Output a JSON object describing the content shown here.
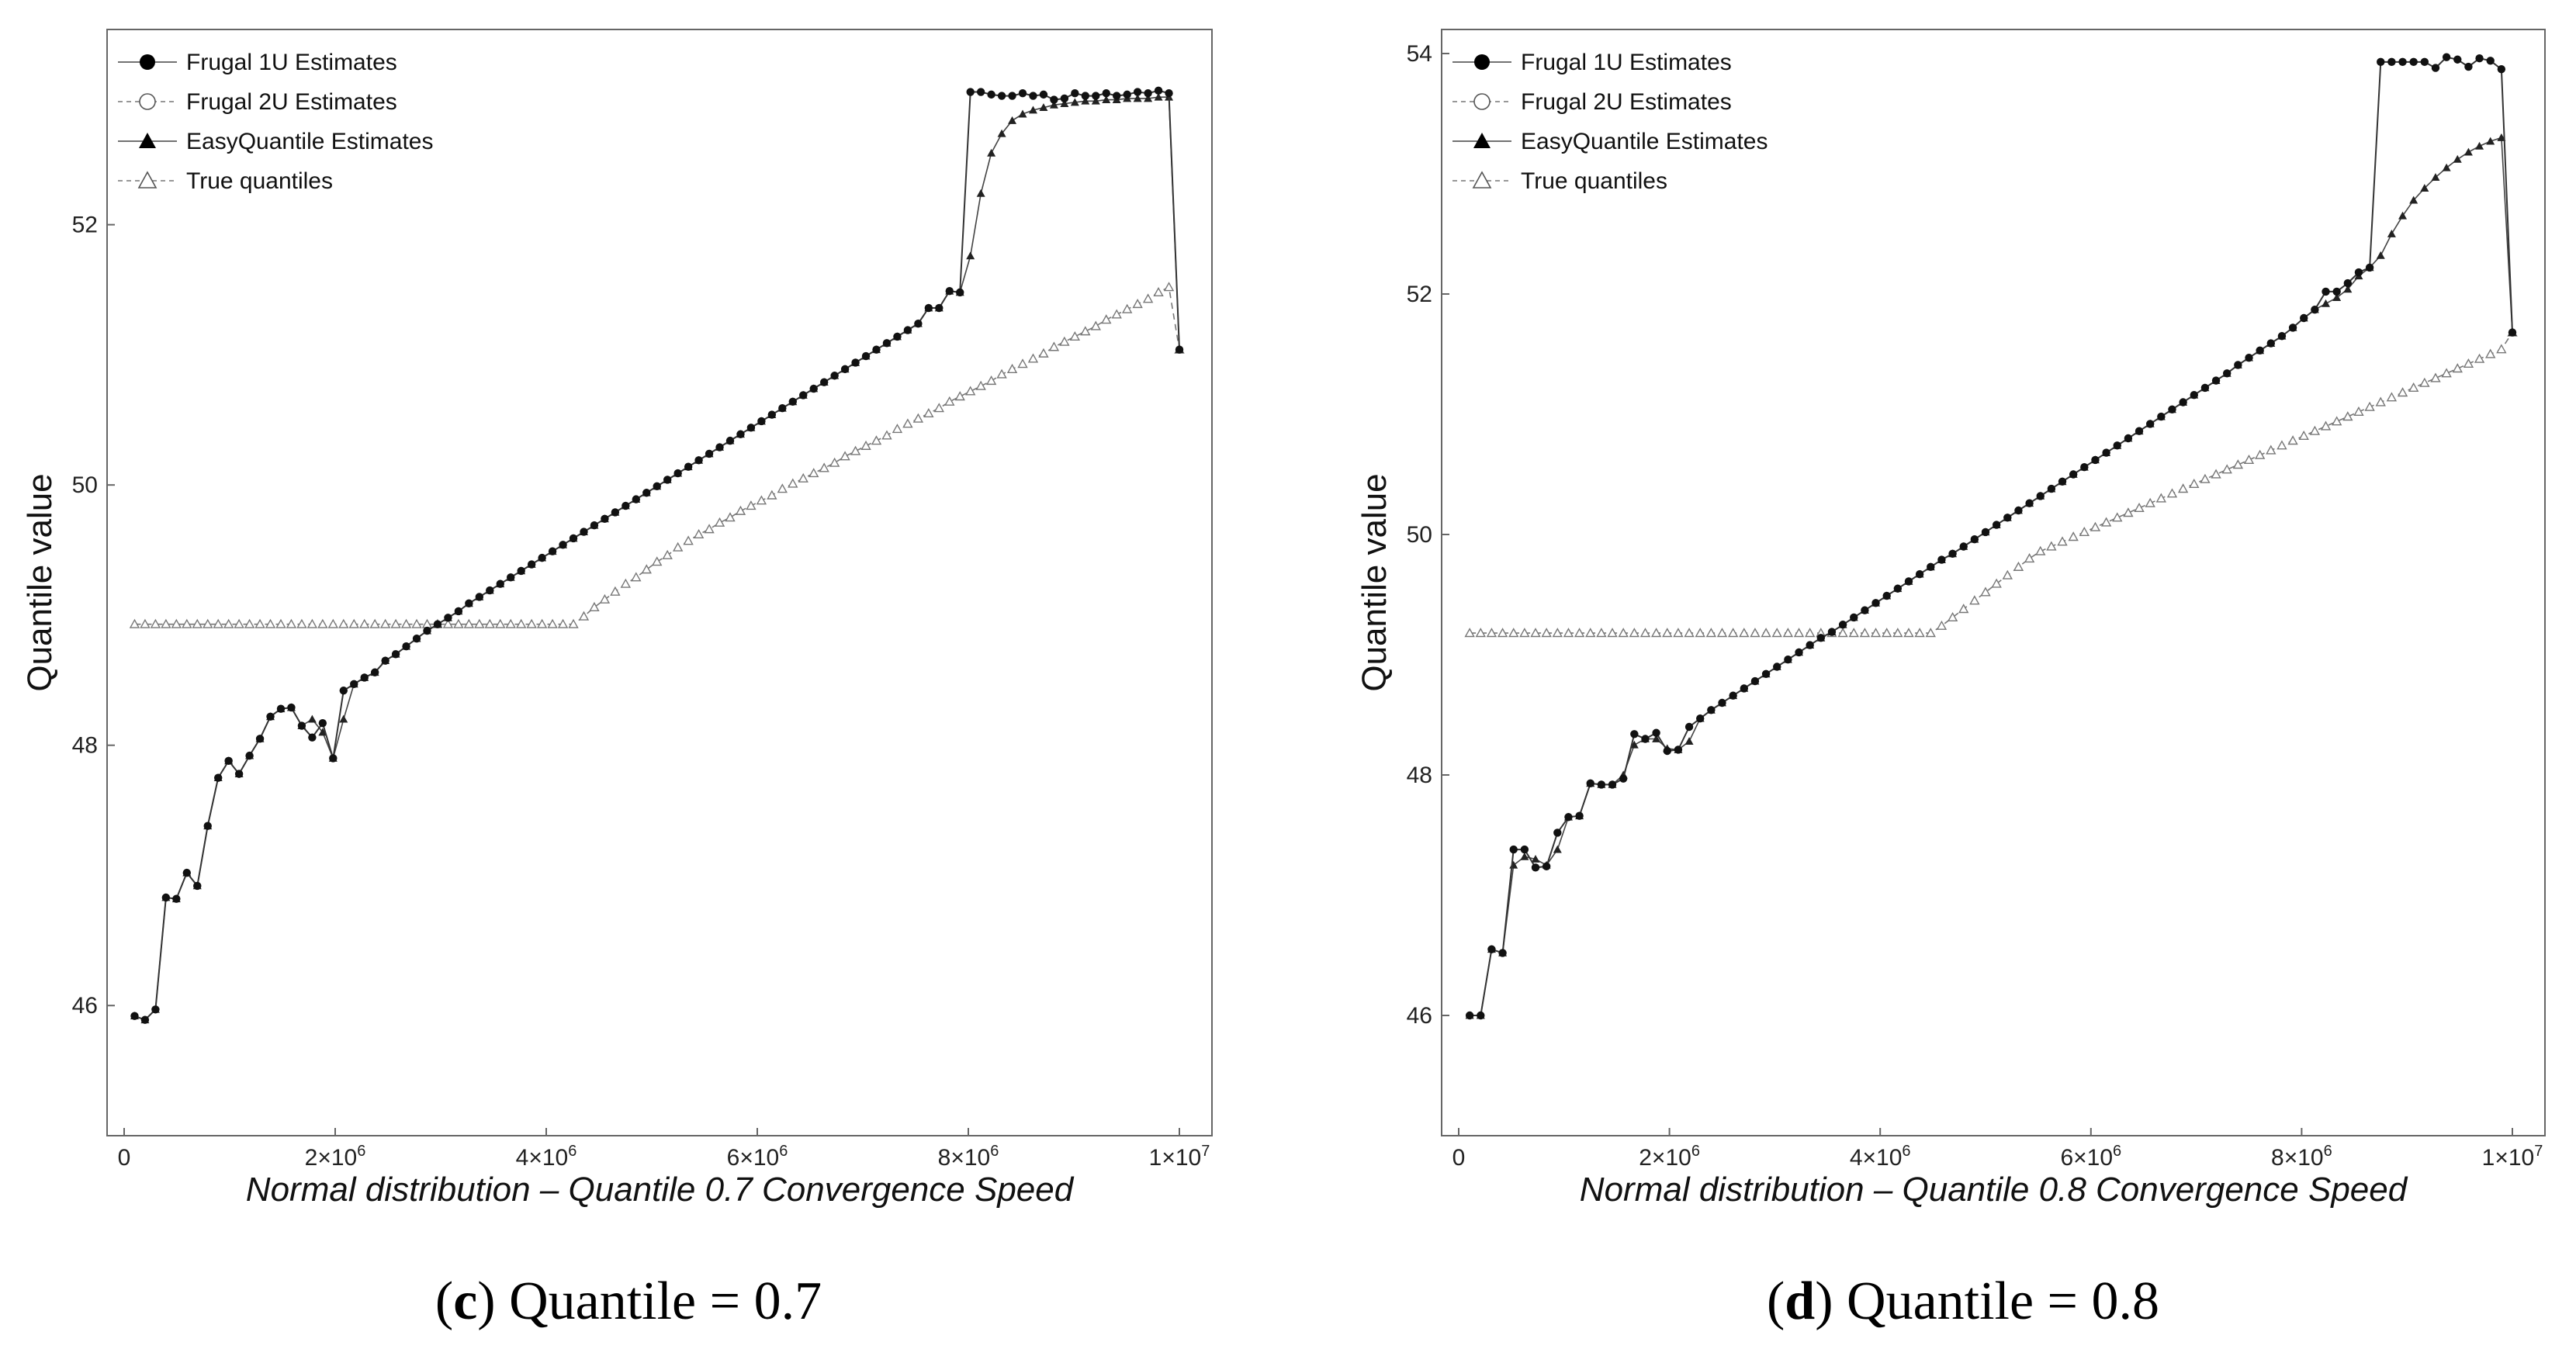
{
  "chart_data": [
    {
      "type": "line",
      "panel": "c",
      "caption_letter": "c",
      "caption_rest": "Quantile = 0.7",
      "title": "",
      "xlabel": "Normal distribution – Quantile 0.7 Convergence Speed",
      "ylabel": "Quantile value",
      "xlim": [
        0,
        10000000
      ],
      "ylim": [
        45,
        53.5
      ],
      "x_ticks": [
        {
          "value": 0,
          "mant": "0",
          "exp": ""
        },
        {
          "value": 2000000,
          "mant": "2×10",
          "exp": "6"
        },
        {
          "value": 4000000,
          "mant": "4×10",
          "exp": "6"
        },
        {
          "value": 6000000,
          "mant": "6×10",
          "exp": "6"
        },
        {
          "value": 8000000,
          "mant": "8×10",
          "exp": "6"
        },
        {
          "value": 10000000,
          "mant": "1×10",
          "exp": "7"
        }
      ],
      "y_ticks": [
        46,
        48,
        50,
        52
      ],
      "legend": [
        "Frugal 1U Estimates",
        "Frugal 2U Estimates",
        "EasyQuantile Estimates",
        "True quantiles"
      ],
      "legend_position": "top-left",
      "series": [
        {
          "name": "Frugal 1U Estimates",
          "values": [
            45.92,
            45.89,
            45.97,
            46.83,
            46.82,
            47.02,
            46.92,
            47.38,
            47.75,
            47.88,
            47.78,
            47.92,
            48.05,
            48.22,
            48.28,
            48.29,
            48.15,
            48.06,
            48.17,
            47.9,
            48.42,
            48.47,
            48.52,
            48.56,
            48.65,
            48.7,
            48.76,
            48.82,
            48.88,
            48.93,
            48.98,
            49.03,
            49.09,
            49.14,
            49.19,
            49.24,
            49.29,
            49.34,
            49.39,
            49.44,
            49.49,
            49.54,
            49.59,
            49.64,
            49.69,
            49.74,
            49.79,
            49.84,
            49.89,
            49.94,
            49.99,
            50.04,
            50.09,
            50.14,
            50.19,
            50.24,
            50.29,
            50.34,
            50.39,
            50.44,
            50.49,
            50.54,
            50.59,
            50.64,
            50.69,
            50.74,
            50.79,
            50.84,
            50.89,
            50.94,
            50.99,
            51.04,
            51.09,
            51.14,
            51.19,
            51.24,
            51.36,
            51.36,
            51.49,
            51.48,
            53.02,
            53.02,
            53.0,
            52.99,
            52.99,
            53.01,
            52.99,
            53.0,
            52.96,
            52.97,
            53.01,
            52.99,
            52.99,
            53.01,
            52.99,
            53.0,
            53.02,
            53.01,
            53.03,
            53.01,
            51.04
          ],
          "marker": "filled-circle"
        },
        {
          "name": "EasyQuantile Estimates",
          "values": [
            45.92,
            45.89,
            45.97,
            46.83,
            46.82,
            47.02,
            46.92,
            47.38,
            47.75,
            47.88,
            47.78,
            47.92,
            48.05,
            48.22,
            48.28,
            48.29,
            48.15,
            48.2,
            48.1,
            47.9,
            48.2,
            48.47,
            48.52,
            48.56,
            48.65,
            48.7,
            48.76,
            48.82,
            48.88,
            48.93,
            48.98,
            49.03,
            49.09,
            49.14,
            49.19,
            49.24,
            49.29,
            49.34,
            49.39,
            49.44,
            49.49,
            49.54,
            49.59,
            49.64,
            49.69,
            49.74,
            49.79,
            49.84,
            49.89,
            49.94,
            49.99,
            50.04,
            50.09,
            50.14,
            50.19,
            50.24,
            50.29,
            50.34,
            50.39,
            50.44,
            50.49,
            50.54,
            50.59,
            50.64,
            50.69,
            50.74,
            50.79,
            50.84,
            50.89,
            50.94,
            50.99,
            51.04,
            51.09,
            51.14,
            51.19,
            51.24,
            51.36,
            51.36,
            51.49,
            51.48,
            51.76,
            52.24,
            52.55,
            52.7,
            52.8,
            52.85,
            52.88,
            52.9,
            52.92,
            52.93,
            52.94,
            52.95,
            52.95,
            52.96,
            52.96,
            52.97,
            52.97,
            52.97,
            52.98,
            52.98,
            51.04
          ],
          "marker": "filled-triangle"
        },
        {
          "name": "True quantiles",
          "values": [
            48.93,
            48.93,
            48.93,
            48.93,
            48.93,
            48.93,
            48.93,
            48.93,
            48.93,
            48.93,
            48.93,
            48.93,
            48.93,
            48.93,
            48.93,
            48.93,
            48.93,
            48.93,
            48.93,
            48.93,
            48.93,
            48.93,
            48.93,
            48.93,
            48.93,
            48.93,
            48.93,
            48.93,
            48.93,
            48.93,
            48.93,
            48.93,
            48.93,
            48.93,
            48.93,
            48.93,
            48.93,
            48.93,
            48.93,
            48.93,
            48.93,
            48.93,
            48.93,
            48.99,
            49.06,
            49.12,
            49.18,
            49.24,
            49.29,
            49.35,
            49.41,
            49.46,
            49.52,
            49.57,
            49.62,
            49.66,
            49.71,
            49.75,
            49.8,
            49.84,
            49.88,
            49.92,
            49.97,
            50.01,
            50.05,
            50.09,
            50.13,
            50.17,
            50.22,
            50.26,
            50.3,
            50.34,
            50.38,
            50.43,
            50.47,
            50.51,
            50.55,
            50.59,
            50.64,
            50.68,
            50.72,
            50.76,
            50.8,
            50.85,
            50.89,
            50.93,
            50.97,
            51.01,
            51.06,
            51.1,
            51.14,
            51.18,
            51.22,
            51.27,
            51.31,
            51.35,
            51.39,
            51.43,
            51.48,
            51.52,
            51.04
          ],
          "marker": "open-triangle"
        }
      ]
    },
    {
      "type": "line",
      "panel": "d",
      "caption_letter": "d",
      "caption_rest": "Quantile = 0.8",
      "title": "",
      "xlabel": "Normal distribution – Quantile 0.8 Convergence Speed",
      "ylabel": "Quantile value",
      "xlim": [
        0,
        10000000
      ],
      "ylim": [
        45,
        54.2
      ],
      "x_ticks": [
        {
          "value": 0,
          "mant": "0",
          "exp": ""
        },
        {
          "value": 2000000,
          "mant": "2×10",
          "exp": "6"
        },
        {
          "value": 4000000,
          "mant": "4×10",
          "exp": "6"
        },
        {
          "value": 6000000,
          "mant": "6×10",
          "exp": "6"
        },
        {
          "value": 8000000,
          "mant": "8×10",
          "exp": "6"
        },
        {
          "value": 10000000,
          "mant": "1×10",
          "exp": "7"
        }
      ],
      "y_ticks": [
        46,
        48,
        50,
        52,
        54
      ],
      "legend": [
        "Frugal 1U Estimates",
        "Frugal 2U Estimates",
        "EasyQuantile Estimates",
        "True quantiles"
      ],
      "legend_position": "top-left",
      "series": [
        {
          "name": "Frugal 1U Estimates",
          "values": [
            46.0,
            46.0,
            46.55,
            46.52,
            47.38,
            47.38,
            47.23,
            47.24,
            47.52,
            47.65,
            47.66,
            47.93,
            47.92,
            47.92,
            47.97,
            48.34,
            48.3,
            48.35,
            48.2,
            48.21,
            48.4,
            48.47,
            48.54,
            48.6,
            48.66,
            48.72,
            48.78,
            48.84,
            48.9,
            48.96,
            49.02,
            49.08,
            49.14,
            49.19,
            49.25,
            49.31,
            49.37,
            49.43,
            49.49,
            49.55,
            49.61,
            49.67,
            49.73,
            49.79,
            49.84,
            49.9,
            49.96,
            50.02,
            50.08,
            50.14,
            50.2,
            50.26,
            50.32,
            50.38,
            50.44,
            50.5,
            50.56,
            50.62,
            50.68,
            50.74,
            50.8,
            50.86,
            50.92,
            50.98,
            51.04,
            51.1,
            51.16,
            51.22,
            51.28,
            51.34,
            51.41,
            51.47,
            51.53,
            51.59,
            51.65,
            51.72,
            51.8,
            51.87,
            52.02,
            52.02,
            52.09,
            52.18,
            52.22,
            53.93,
            53.93,
            53.93,
            53.93,
            53.93,
            53.88,
            53.97,
            53.95,
            53.89,
            53.96,
            53.94,
            53.87,
            51.68
          ],
          "marker": "filled-circle"
        },
        {
          "name": "EasyQuantile Estimates",
          "values": [
            46.0,
            46.0,
            46.55,
            46.52,
            47.25,
            47.32,
            47.3,
            47.25,
            47.38,
            47.65,
            47.66,
            47.93,
            47.92,
            47.92,
            48.0,
            48.25,
            48.3,
            48.3,
            48.22,
            48.21,
            48.28,
            48.47,
            48.54,
            48.6,
            48.66,
            48.72,
            48.78,
            48.84,
            48.9,
            48.96,
            49.02,
            49.08,
            49.14,
            49.19,
            49.25,
            49.31,
            49.37,
            49.43,
            49.49,
            49.55,
            49.61,
            49.67,
            49.73,
            49.79,
            49.84,
            49.9,
            49.96,
            50.02,
            50.08,
            50.14,
            50.2,
            50.26,
            50.32,
            50.38,
            50.44,
            50.5,
            50.56,
            50.62,
            50.68,
            50.74,
            50.8,
            50.86,
            50.92,
            50.98,
            51.04,
            51.1,
            51.16,
            51.22,
            51.28,
            51.34,
            51.41,
            51.47,
            51.53,
            51.59,
            51.65,
            51.72,
            51.8,
            51.87,
            51.92,
            51.97,
            52.04,
            52.15,
            52.22,
            52.32,
            52.5,
            52.65,
            52.78,
            52.88,
            52.97,
            53.05,
            53.12,
            53.18,
            53.23,
            53.27,
            53.3,
            51.68
          ],
          "marker": "filled-triangle"
        },
        {
          "name": "True quantiles",
          "values": [
            49.18,
            49.18,
            49.18,
            49.18,
            49.18,
            49.18,
            49.18,
            49.18,
            49.18,
            49.18,
            49.18,
            49.18,
            49.18,
            49.18,
            49.18,
            49.18,
            49.18,
            49.18,
            49.18,
            49.18,
            49.18,
            49.18,
            49.18,
            49.18,
            49.18,
            49.18,
            49.18,
            49.18,
            49.18,
            49.18,
            49.18,
            49.18,
            49.18,
            49.18,
            49.18,
            49.18,
            49.18,
            49.18,
            49.18,
            49.18,
            49.18,
            49.18,
            49.18,
            49.24,
            49.31,
            49.38,
            49.45,
            49.52,
            49.59,
            49.66,
            49.73,
            49.8,
            49.86,
            49.9,
            49.94,
            49.98,
            50.02,
            50.06,
            50.1,
            50.14,
            50.18,
            50.22,
            50.26,
            50.3,
            50.34,
            50.38,
            50.42,
            50.46,
            50.5,
            50.54,
            50.58,
            50.62,
            50.66,
            50.7,
            50.74,
            50.78,
            50.82,
            50.86,
            50.9,
            50.94,
            50.98,
            51.02,
            51.06,
            51.1,
            51.14,
            51.18,
            51.22,
            51.26,
            51.3,
            51.34,
            51.38,
            51.42,
            51.46,
            51.5,
            51.54,
            51.68
          ],
          "marker": "open-triangle"
        }
      ]
    }
  ]
}
